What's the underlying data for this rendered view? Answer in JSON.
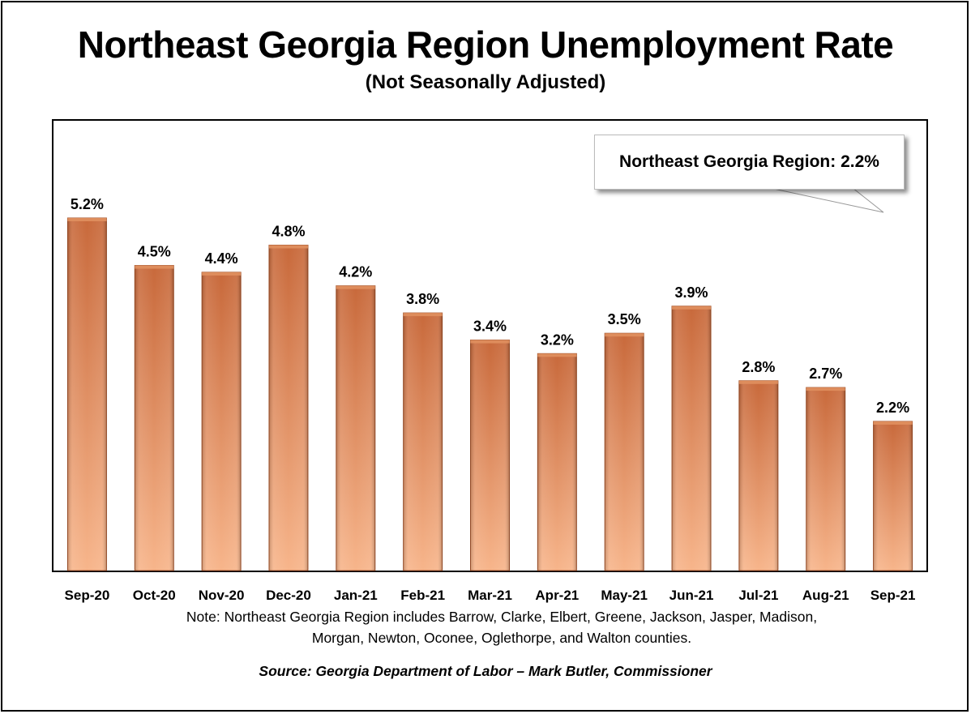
{
  "title": "Northeast Georgia Region Unemployment Rate",
  "subtitle": "(Not Seasonally Adjusted)",
  "callout": "Northeast Georgia Region: 2.2%",
  "note": "Note: Northeast Georgia Region includes Barrow, Clarke, Elbert, Greene, Jackson, Jasper, Madison, Morgan, Newton, Oconee, Oglethorpe, and Walton counties.",
  "source": "Source:  Georgia Department of Labor – Mark Butler, Commissioner",
  "colors": {
    "bar_light": "#f7b58b",
    "bar_dark": "#c8693b",
    "bar_edge": "#a04f27"
  },
  "chart_data": {
    "type": "bar",
    "title": "Northeast Georgia Region Unemployment Rate",
    "subtitle": "(Not Seasonally Adjusted)",
    "categories": [
      "Sep-20",
      "Oct-20",
      "Nov-20",
      "Dec-20",
      "Jan-21",
      "Feb-21",
      "Mar-21",
      "Apr-21",
      "May-21",
      "Jun-21",
      "Jul-21",
      "Aug-21",
      "Sep-21"
    ],
    "values": [
      5.2,
      4.5,
      4.4,
      4.8,
      4.2,
      3.8,
      3.4,
      3.2,
      3.5,
      3.9,
      2.8,
      2.7,
      2.2
    ],
    "data_labels": [
      "5.2%",
      "4.5%",
      "4.4%",
      "4.8%",
      "4.2%",
      "3.8%",
      "3.4%",
      "3.2%",
      "3.5%",
      "3.9%",
      "2.8%",
      "2.7%",
      "2.2%"
    ],
    "ylim": [
      0,
      5.2
    ],
    "grid": false,
    "xlabel": "",
    "ylabel": ""
  }
}
